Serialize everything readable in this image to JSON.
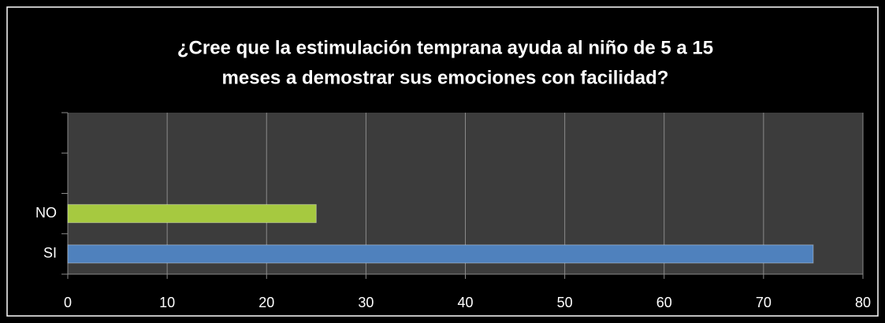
{
  "chart_data": {
    "type": "bar",
    "orientation": "horizontal",
    "title": [
      "¿Cree que la estimulación temprana ayuda al  niño de 5 a 15",
      "meses a demostrar  sus emociones con facilidad?"
    ],
    "categories": [
      "SI",
      "NO",
      null,
      null
    ],
    "values": [
      75,
      25,
      null,
      null
    ],
    "colors": [
      "#4f81bd",
      "#a6c940",
      null,
      null
    ],
    "xlim": [
      0,
      80
    ],
    "xticks": [
      0,
      10,
      20,
      30,
      40,
      50,
      60,
      70,
      80
    ],
    "grid": true
  }
}
